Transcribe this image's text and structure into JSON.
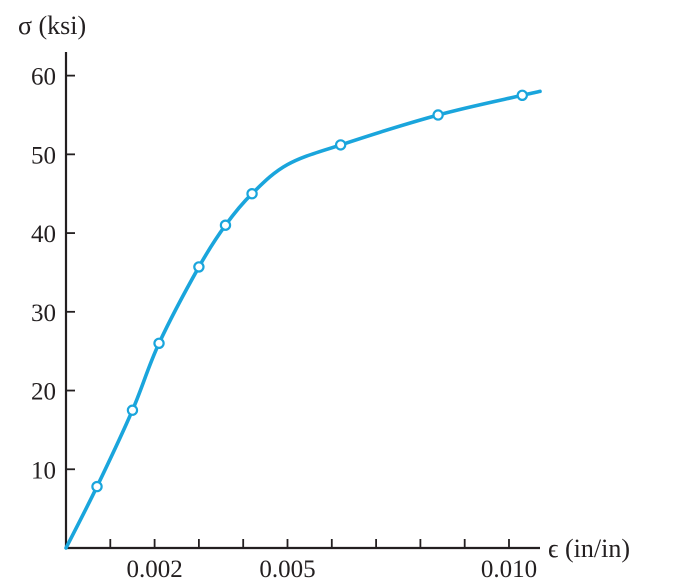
{
  "chart_data": {
    "type": "line",
    "title": "",
    "ylabel": "σ (ksi)",
    "xlabel": "ϵ (in/in)",
    "xlim": [
      0,
      0.0107
    ],
    "ylim": [
      0,
      63
    ],
    "y_ticks": [
      10,
      20,
      30,
      40,
      50,
      60
    ],
    "y_tick_labels": [
      "10",
      "20",
      "30",
      "40",
      "50",
      "60"
    ],
    "x_minor_ticks": [
      0.001,
      0.002,
      0.003,
      0.004,
      0.005,
      0.006,
      0.007,
      0.008,
      0.009,
      0.01
    ],
    "x_tick_labels": [
      {
        "value": 0.002,
        "label": "0.002"
      },
      {
        "value": 0.005,
        "label": "0.005"
      },
      {
        "value": 0.01,
        "label": "0.010"
      }
    ],
    "series": [
      {
        "color": "#1aa5dc",
        "points": [
          {
            "x": 0.0007,
            "y": 7.8
          },
          {
            "x": 0.0015,
            "y": 17.5
          },
          {
            "x": 0.0021,
            "y": 26.0
          },
          {
            "x": 0.003,
            "y": 35.7
          },
          {
            "x": 0.0036,
            "y": 41.0
          },
          {
            "x": 0.0042,
            "y": 45.0
          },
          {
            "x": 0.0062,
            "y": 51.2
          },
          {
            "x": 0.0084,
            "y": 55.0
          },
          {
            "x": 0.0103,
            "y": 57.5
          }
        ],
        "curve": [
          [
            0.0,
            0.0
          ],
          [
            0.0007,
            7.8
          ],
          [
            0.0015,
            17.5
          ],
          [
            0.0021,
            26.0
          ],
          [
            0.003,
            35.7
          ],
          [
            0.0036,
            41.0
          ],
          [
            0.0042,
            45.0
          ],
          [
            0.005,
            48.7
          ],
          [
            0.0062,
            51.2
          ],
          [
            0.0084,
            55.0
          ],
          [
            0.0103,
            57.5
          ],
          [
            0.0107,
            58.0
          ]
        ]
      }
    ]
  }
}
